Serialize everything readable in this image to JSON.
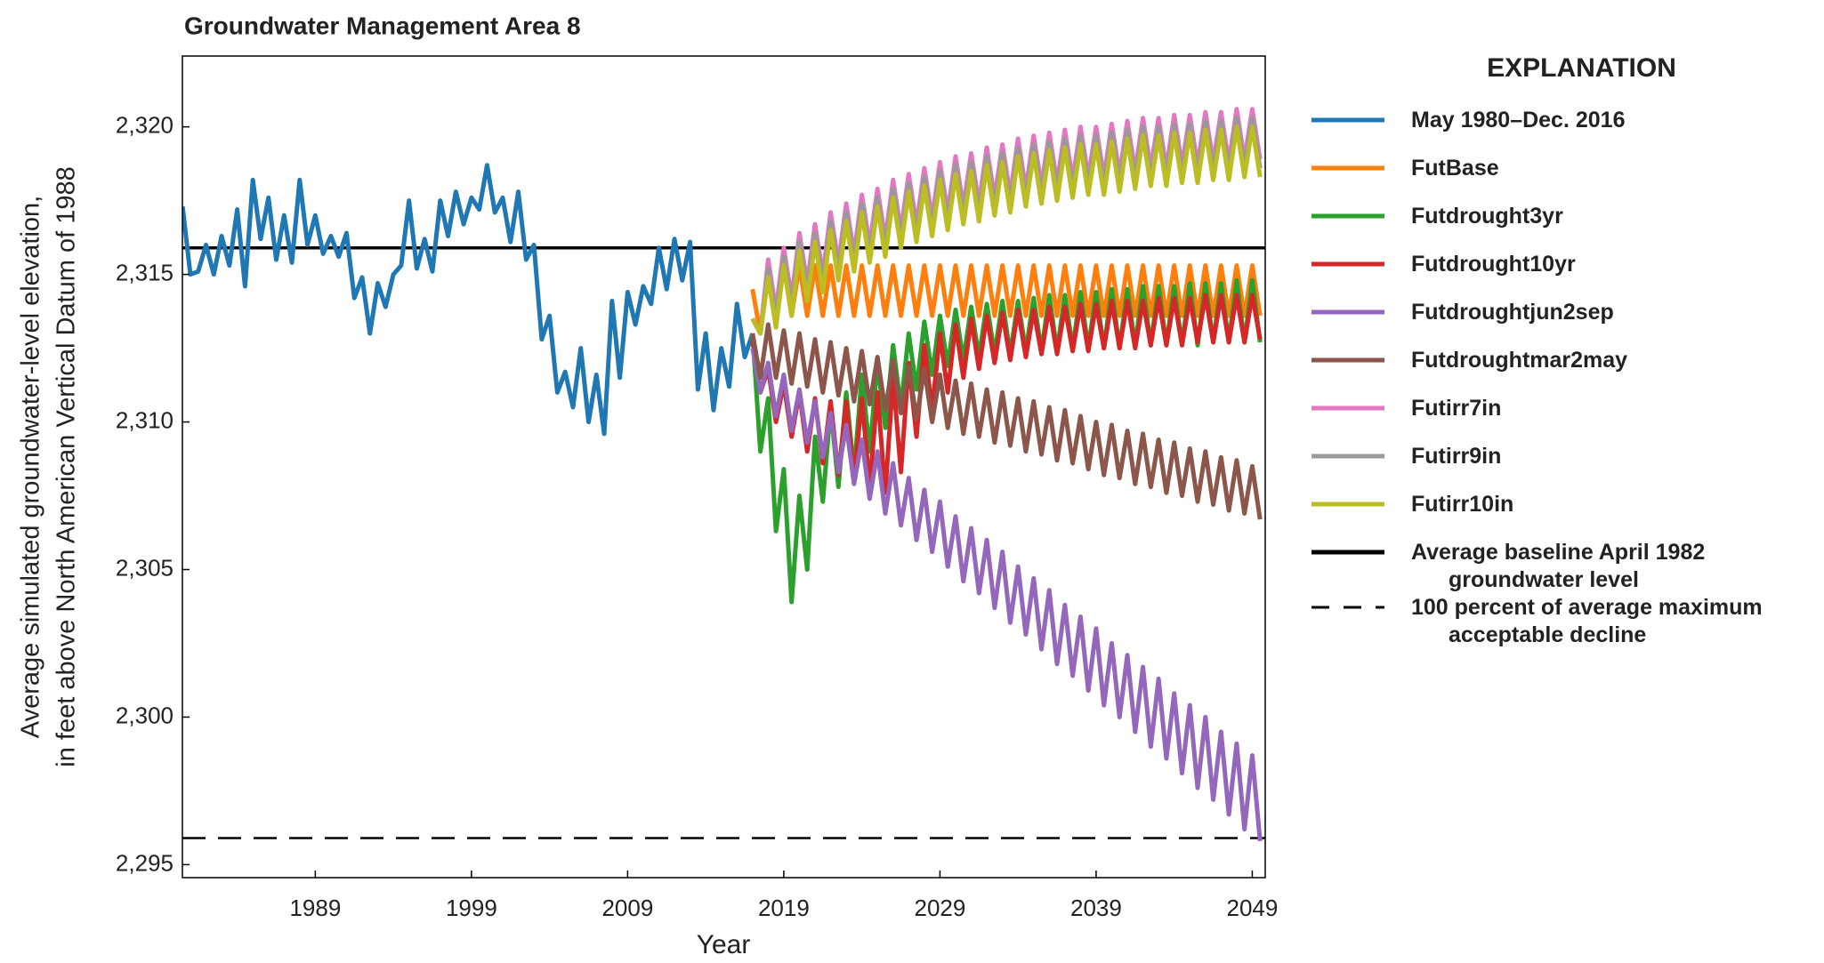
{
  "chart_data": {
    "type": "line",
    "title": "Groundwater Management Area 8",
    "xlabel": "Year",
    "ylabel": [
      "Average simulated groundwater-level elevation,",
      "in feet above North American Vertical Datum of 1988"
    ],
    "legend_title": "EXPLANATION",
    "xlim": [
      1980.49,
      2049.83
    ],
    "xticks": [
      1989,
      1999,
      2009,
      2019,
      2029,
      2039,
      2049
    ],
    "ylim": [
      2294.56,
      2322.4
    ],
    "yticks": [
      {
        "value": 2295,
        "label": "2,295"
      },
      {
        "value": 2300,
        "label": "2,300"
      },
      {
        "value": 2305,
        "label": "2,305"
      },
      {
        "value": 2310,
        "label": "2,310"
      },
      {
        "value": 2315,
        "label": "2,315"
      },
      {
        "value": 2320,
        "label": "2,320"
      }
    ],
    "x": [
      2017,
      2017.5,
      2018,
      2018.5,
      2019,
      2019.5,
      2020,
      2020.5,
      2021,
      2021.5,
      2022,
      2022.5,
      2023,
      2023.5,
      2024,
      2024.5,
      2025,
      2025.5,
      2026,
      2026.5,
      2027,
      2027.5,
      2028,
      2028.5,
      2029,
      2029.5,
      2030,
      2030.5,
      2031,
      2031.5,
      2032,
      2032.5,
      2033,
      2033.5,
      2034,
      2034.5,
      2035,
      2035.5,
      2036,
      2036.5,
      2037,
      2037.5,
      2038,
      2038.5,
      2039,
      2039.5,
      2040,
      2040.5,
      2041,
      2041.5,
      2042,
      2042.5,
      2043,
      2043.5,
      2044,
      2044.5,
      2045,
      2045.5,
      2046,
      2046.5,
      2047,
      2047.5,
      2048,
      2048.5,
      2049,
      2049.5
    ],
    "series": [
      {
        "name": "May 1980–Dec. 2016",
        "color": "#1f77b4",
        "x": [
          1980.5,
          1981,
          1981.5,
          1982,
          1982.5,
          1983,
          1983.5,
          1984,
          1984.5,
          1985,
          1985.5,
          1986,
          1986.5,
          1987,
          1987.5,
          1988,
          1988.5,
          1989,
          1989.5,
          1990,
          1990.5,
          1991,
          1991.5,
          1992,
          1992.5,
          1993,
          1993.5,
          1994,
          1994.5,
          1995,
          1995.5,
          1996,
          1996.5,
          1997,
          1997.5,
          1998,
          1998.5,
          1999,
          1999.5,
          2000,
          2000.5,
          2001,
          2001.5,
          2002,
          2002.5,
          2003,
          2003.5,
          2004,
          2004.5,
          2005,
          2005.5,
          2006,
          2006.5,
          2007,
          2007.5,
          2008,
          2008.5,
          2009,
          2009.5,
          2010,
          2010.5,
          2011,
          2011.5,
          2012,
          2012.5,
          2013,
          2013.5,
          2014,
          2014.5,
          2015,
          2015.5,
          2016,
          2016.5,
          2017
        ],
        "values": [
          2317.3,
          2315,
          2315.1,
          2316,
          2315,
          2316.3,
          2315.3,
          2317.2,
          2314.6,
          2318.2,
          2316.2,
          2317.6,
          2315.5,
          2317,
          2315.4,
          2318.2,
          2316,
          2317,
          2315.7,
          2316.3,
          2315.6,
          2316.4,
          2314.2,
          2314.9,
          2313,
          2314.7,
          2313.9,
          2315,
          2315.3,
          2317.5,
          2315.2,
          2316.2,
          2315.1,
          2317.5,
          2316.3,
          2317.8,
          2316.7,
          2317.6,
          2317.2,
          2318.7,
          2317.1,
          2317.6,
          2316.1,
          2317.8,
          2315.5,
          2316,
          2312.8,
          2313.6,
          2311,
          2311.7,
          2310.5,
          2312.5,
          2310,
          2311.6,
          2309.6,
          2314.1,
          2311.5,
          2314.4,
          2313.3,
          2314.6,
          2314,
          2315.9,
          2314.5,
          2316.2,
          2314.8,
          2316.1,
          2311.1,
          2313,
          2310.4,
          2312.5,
          2311.2,
          2314,
          2312.2,
          2313
        ]
      },
      {
        "name": "FutBase",
        "color": "#ff7f0e",
        "values": [
          2314.5,
          2313.0,
          2315.3,
          2313.6,
          2315.3,
          2313.6,
          2315.3,
          2313.6,
          2315.3,
          2313.6,
          2315.3,
          2313.6,
          2315.3,
          2313.6,
          2315.3,
          2313.6,
          2315.3,
          2313.6,
          2315.3,
          2313.6,
          2315.3,
          2313.6,
          2315.3,
          2313.6,
          2315.3,
          2313.6,
          2315.3,
          2313.6,
          2315.3,
          2313.6,
          2315.3,
          2313.6,
          2315.3,
          2313.6,
          2315.3,
          2313.6,
          2315.3,
          2313.6,
          2315.3,
          2313.6,
          2315.3,
          2313.6,
          2315.3,
          2313.6,
          2315.3,
          2313.6,
          2315.3,
          2313.6,
          2315.3,
          2313.6,
          2315.3,
          2313.6,
          2315.3,
          2313.6,
          2315.3,
          2313.6,
          2315.3,
          2313.6,
          2315.3,
          2313.6,
          2315.3,
          2313.6,
          2315.3,
          2313.6,
          2315.3,
          2313.6
        ]
      },
      {
        "name": "Futdrought3yr",
        "color": "#2ca02c",
        "values": [
          2313.0,
          2309.0,
          2310.8,
          2306.3,
          2308.4,
          2303.9,
          2307.5,
          2305,
          2309.5,
          2307.3,
          2310.5,
          2307.8,
          2311,
          2308.3,
          2311.6,
          2309,
          2312,
          2309.8,
          2312.6,
          2310.5,
          2313,
          2311.1,
          2313.4,
          2311.6,
          2313.6,
          2311.9,
          2313.8,
          2312.1,
          2313.9,
          2312.2,
          2314.0,
          2312.3,
          2314.1,
          2312.3,
          2314.1,
          2312.4,
          2314.2,
          2312.4,
          2314.3,
          2312.4,
          2314.3,
          2312.5,
          2314.4,
          2312.5,
          2314.4,
          2312.5,
          2314.5,
          2312.5,
          2314.5,
          2312.6,
          2314.6,
          2312.6,
          2314.6,
          2312.6,
          2314.6,
          2312.6,
          2314.7,
          2312.6,
          2314.7,
          2312.7,
          2314.7,
          2312.7,
          2314.8,
          2312.7,
          2314.8,
          2312.7
        ]
      },
      {
        "name": "Futdrought10yr",
        "color": "#d62728",
        "values": [
          2312.8,
          2311.0,
          2311.8,
          2310.0,
          2311.3,
          2309.5,
          2311,
          2309,
          2310.8,
          2308.6,
          2310.7,
          2308.2,
          2310.7,
          2308,
          2310.8,
          2307.8,
          2311,
          2307.6,
          2311.5,
          2308.3,
          2312,
          2309.5,
          2312.6,
          2310.4,
          2313,
          2311,
          2313.3,
          2311.5,
          2313.5,
          2311.8,
          2313.6,
          2312.0,
          2313.7,
          2312.1,
          2313.8,
          2312.2,
          2313.8,
          2312.3,
          2313.9,
          2312.3,
          2313.9,
          2312.4,
          2314.0,
          2312.4,
          2314.0,
          2312.5,
          2314.1,
          2312.5,
          2314.1,
          2312.5,
          2314.1,
          2312.6,
          2314.2,
          2312.6,
          2314.2,
          2312.6,
          2314.2,
          2312.7,
          2314.3,
          2312.7,
          2314.3,
          2312.7,
          2314.3,
          2312.7,
          2314.3,
          2312.8
        ]
      },
      {
        "name": "Futdroughtjun2sep",
        "color": "#9467bd",
        "values": [
          2312.5,
          2311.0,
          2312.0,
          2310.2,
          2311.6,
          2309.7,
          2311.1,
          2309.3,
          2310.7,
          2308.8,
          2310.3,
          2308.3,
          2309.9,
          2307.9,
          2309.4,
          2307.4,
          2309.0,
          2306.9,
          2308.6,
          2306.5,
          2308.1,
          2306.0,
          2307.7,
          2305.6,
          2307.3,
          2305.1,
          2306.8,
          2304.6,
          2306.4,
          2304.2,
          2306.0,
          2303.7,
          2305.6,
          2303.2,
          2305.1,
          2302.8,
          2304.7,
          2302.3,
          2304.3,
          2301.8,
          2303.8,
          2301.4,
          2303.4,
          2300.9,
          2303.0,
          2300.4,
          2302.5,
          2300.0,
          2302.1,
          2299.5,
          2301.7,
          2299.0,
          2301.3,
          2298.6,
          2300.8,
          2298.1,
          2300.4,
          2297.6,
          2300.0,
          2297.2,
          2299.5,
          2296.7,
          2299.1,
          2296.2,
          2298.7,
          2295.8
        ]
      },
      {
        "name": "Futdroughtmar2may",
        "color": "#8c564b",
        "values": [
          2313.0,
          2311.5,
          2313.3,
          2311.5,
          2313.1,
          2311.3,
          2313.0,
          2311.2,
          2312.8,
          2311.0,
          2312.7,
          2310.9,
          2312.5,
          2310.7,
          2312.4,
          2310.6,
          2312.2,
          2310.4,
          2312.1,
          2310.3,
          2311.9,
          2310.1,
          2311.8,
          2310.0,
          2311.6,
          2309.8,
          2311.4,
          2309.6,
          2311.3,
          2309.5,
          2311.1,
          2309.3,
          2311.0,
          2309.2,
          2310.8,
          2309.0,
          2310.7,
          2308.9,
          2310.5,
          2308.7,
          2310.4,
          2308.6,
          2310.2,
          2308.4,
          2310.0,
          2308.2,
          2309.9,
          2308.1,
          2309.7,
          2307.9,
          2309.6,
          2307.8,
          2309.4,
          2307.6,
          2309.3,
          2307.5,
          2309.1,
          2307.3,
          2309.0,
          2307.2,
          2308.8,
          2307.0,
          2308.7,
          2306.9,
          2308.5,
          2306.7
        ]
      },
      {
        "name": "Futirr7in",
        "color": "#e377c2",
        "values": [
          2313.5,
          2313.0,
          2315.5,
          2313.8,
          2315.9,
          2314.2,
          2316.4,
          2314.7,
          2316.7,
          2315.0,
          2317.1,
          2315.4,
          2317.4,
          2315.7,
          2317.7,
          2316.0,
          2317.9,
          2316.2,
          2318.2,
          2316.5,
          2318.4,
          2316.7,
          2318.6,
          2316.9,
          2318.8,
          2317.1,
          2319.0,
          2317.3,
          2319.1,
          2317.4,
          2319.3,
          2317.6,
          2319.4,
          2317.7,
          2319.6,
          2317.9,
          2319.7,
          2318.0,
          2319.8,
          2318.1,
          2319.9,
          2318.2,
          2320.0,
          2318.3,
          2320.0,
          2318.3,
          2320.1,
          2318.4,
          2320.2,
          2318.5,
          2320.3,
          2318.6,
          2320.3,
          2318.6,
          2320.4,
          2318.7,
          2320.4,
          2318.7,
          2320.5,
          2318.8,
          2320.5,
          2318.8,
          2320.6,
          2318.9,
          2320.6,
          2318.9
        ]
      },
      {
        "name": "Futirr9in",
        "color": "#999999",
        "values": [
          2313.5,
          2313.0,
          2315.2,
          2313.5,
          2315.6,
          2313.9,
          2316.1,
          2314.4,
          2316.4,
          2314.7,
          2316.8,
          2315.1,
          2317.1,
          2315.4,
          2317.4,
          2315.7,
          2317.6,
          2315.9,
          2317.9,
          2316.2,
          2318.1,
          2316.4,
          2318.3,
          2316.6,
          2318.5,
          2316.8,
          2318.7,
          2317.0,
          2318.8,
          2317.1,
          2319.0,
          2317.3,
          2319.1,
          2317.4,
          2319.3,
          2317.6,
          2319.4,
          2317.7,
          2319.5,
          2317.8,
          2319.6,
          2317.9,
          2319.7,
          2318.0,
          2319.7,
          2318.0,
          2319.8,
          2318.1,
          2319.9,
          2318.2,
          2320.0,
          2318.3,
          2320.0,
          2318.3,
          2320.1,
          2318.4,
          2320.1,
          2318.4,
          2320.2,
          2318.5,
          2320.2,
          2318.5,
          2320.3,
          2318.6,
          2320.3,
          2318.6
        ]
      },
      {
        "name": "Futirr10in",
        "color": "#bcbd22",
        "values": [
          2313.5,
          2313.0,
          2314.9,
          2313.2,
          2315.3,
          2313.6,
          2315.8,
          2314.1,
          2316.1,
          2314.4,
          2316.5,
          2314.8,
          2316.8,
          2315.1,
          2317.1,
          2315.4,
          2317.3,
          2315.6,
          2317.6,
          2315.9,
          2317.8,
          2316.1,
          2318.0,
          2316.3,
          2318.2,
          2316.5,
          2318.4,
          2316.7,
          2318.5,
          2316.8,
          2318.7,
          2317.0,
          2318.8,
          2317.1,
          2319.0,
          2317.3,
          2319.1,
          2317.4,
          2319.2,
          2317.5,
          2319.3,
          2317.6,
          2319.4,
          2317.7,
          2319.4,
          2317.7,
          2319.5,
          2317.8,
          2319.6,
          2317.9,
          2319.7,
          2318.0,
          2319.7,
          2318.0,
          2319.8,
          2318.1,
          2319.8,
          2318.1,
          2319.9,
          2318.2,
          2319.9,
          2318.2,
          2320.0,
          2318.3,
          2320.0,
          2318.3
        ]
      }
    ],
    "reference_lines": [
      {
        "name": "Average baseline April 1982 groundwater level",
        "value": 2315.9,
        "style": "solid",
        "color": "#000000"
      },
      {
        "name": "100 percent of average maximum acceptable decline",
        "value": 2295.9,
        "style": "dashed",
        "color": "#000000"
      }
    ]
  }
}
